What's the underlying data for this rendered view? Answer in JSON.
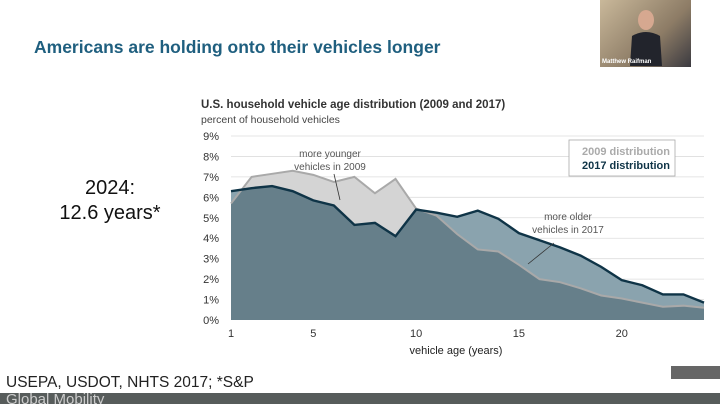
{
  "slide": {
    "title": "Americans are holding onto their vehicles longer",
    "stat_year": "2024:",
    "stat_value": "12.6 years*",
    "source": "USEPA, USDOT, NHTS 2017; *S&P",
    "footer_partial": "Global Mobility",
    "title_color": "#1f5f7f"
  },
  "video": {
    "participant_name": "Matthew Raifman"
  },
  "chart_data": {
    "type": "area",
    "title": "U.S. household vehicle age distribution (2009 and 2017)",
    "subtitle": "percent of household vehicles",
    "xlabel": "vehicle age (years)",
    "ylabel": "",
    "xlim": [
      1,
      24
    ],
    "ylim": [
      0,
      9
    ],
    "x_ticks": [
      1,
      5,
      10,
      15,
      20
    ],
    "y_ticks": [
      "0%",
      "1%",
      "2%",
      "3%",
      "4%",
      "5%",
      "6%",
      "7%",
      "8%",
      "9%"
    ],
    "grid": "horizontal",
    "legend_position": "top-right",
    "x": [
      1,
      2,
      3,
      4,
      5,
      6,
      7,
      8,
      9,
      10,
      11,
      12,
      13,
      14,
      15,
      16,
      17,
      18,
      19,
      20,
      21,
      22,
      23,
      24
    ],
    "series": [
      {
        "name": "2009 distribution",
        "color": "#a9a9a9",
        "values": [
          5.7,
          7.0,
          7.15,
          7.3,
          7.1,
          6.75,
          7.0,
          6.2,
          6.9,
          5.45,
          5.1,
          4.2,
          3.45,
          3.35,
          2.7,
          2.0,
          1.85,
          1.55,
          1.2,
          1.05,
          0.85,
          0.65,
          0.7,
          0.6
        ]
      },
      {
        "name": "2017 distribution",
        "color": "#0f3447",
        "values": [
          6.3,
          6.45,
          6.55,
          6.3,
          5.85,
          5.6,
          4.65,
          4.75,
          4.1,
          5.4,
          5.25,
          5.05,
          5.35,
          4.95,
          4.25,
          3.9,
          3.55,
          3.15,
          2.6,
          1.95,
          1.7,
          1.25,
          1.25,
          0.85
        ]
      }
    ],
    "annotations": [
      {
        "text": [
          "more younger",
          "vehicles in 2009"
        ]
      },
      {
        "text": [
          "more older",
          "vehicles in 2017"
        ]
      }
    ]
  }
}
